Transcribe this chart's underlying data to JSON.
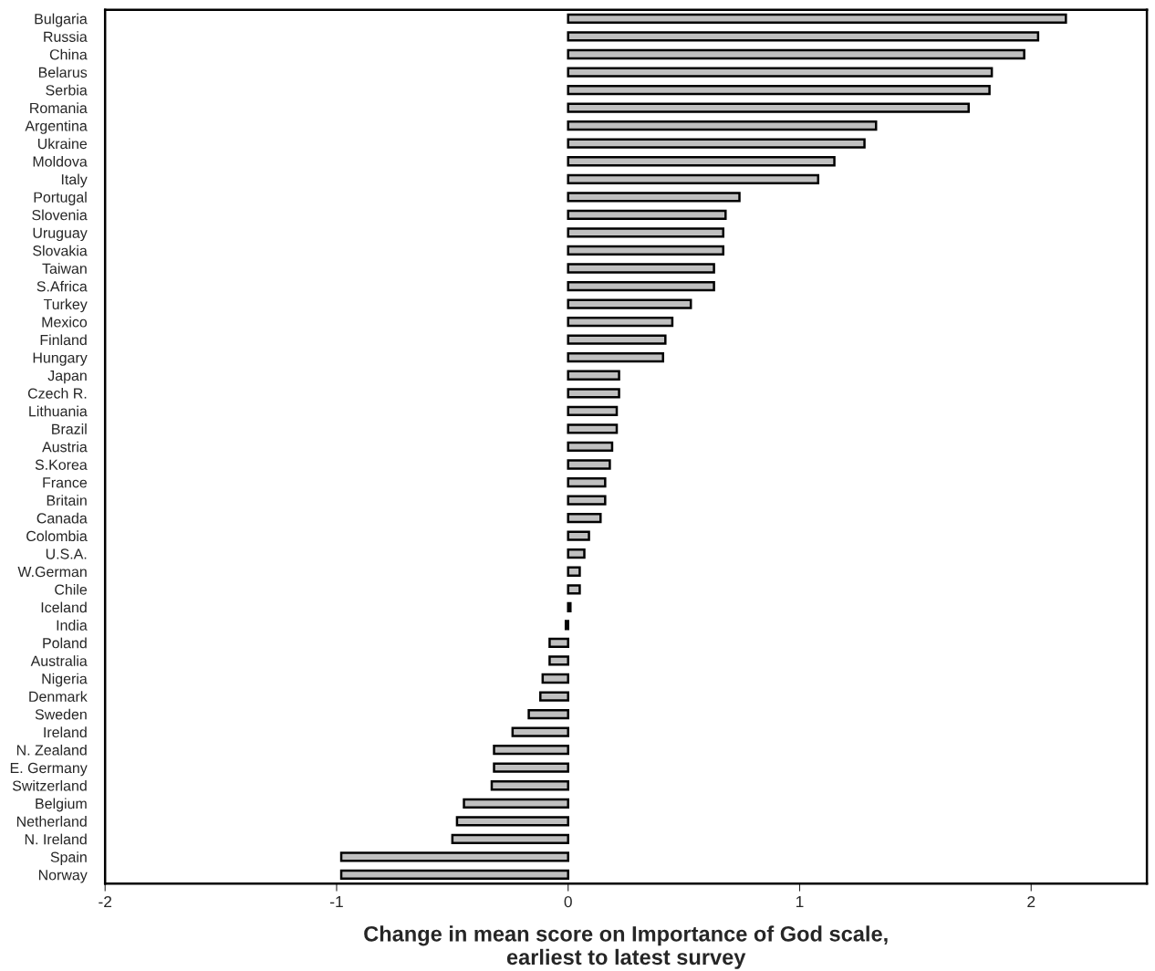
{
  "chart_data": {
    "type": "bar",
    "orientation": "horizontal",
    "xlabel": "Change in mean score on Importance of God scale,\nearliest to latest survey",
    "categories": [
      "Bulgaria",
      "Russia",
      "China",
      "Belarus",
      "Serbia",
      "Romania",
      "Argentina",
      "Ukraine",
      "Moldova",
      "Italy",
      "Portugal",
      "Slovenia",
      "Uruguay",
      "Slovakia",
      "Taiwan",
      "S.Africa",
      "Turkey",
      "Mexico",
      "Finland",
      "Hungary",
      "Japan",
      "Czech R.",
      "Lithuania",
      "Brazil",
      "Austria",
      "S.Korea",
      "France",
      "Britain",
      "Canada",
      "Colombia",
      "U.S.A.",
      "W.German",
      "Chile",
      "Iceland",
      "India",
      "Poland",
      "Australia",
      "Nigeria",
      "Denmark",
      "Sweden",
      "Ireland",
      "N. Zealand",
      "E. Germany",
      "Switzerland",
      "Belgium",
      "Netherland",
      "N. Ireland",
      "Spain",
      "Norway"
    ],
    "values": [
      2.15,
      2.03,
      1.97,
      1.83,
      1.82,
      1.73,
      1.33,
      1.28,
      1.15,
      1.08,
      0.74,
      0.68,
      0.67,
      0.67,
      0.63,
      0.63,
      0.53,
      0.45,
      0.42,
      0.41,
      0.22,
      0.22,
      0.21,
      0.21,
      0.19,
      0.18,
      0.16,
      0.16,
      0.14,
      0.09,
      0.07,
      0.05,
      0.05,
      0.01,
      -0.01,
      -0.08,
      -0.08,
      -0.11,
      -0.12,
      -0.17,
      -0.24,
      -0.32,
      -0.32,
      -0.33,
      -0.45,
      -0.48,
      -0.5,
      -0.98,
      -0.98
    ],
    "color": "#c0c0c0",
    "xlim": [
      -2,
      2.5
    ],
    "xticks": [
      -2,
      -1,
      0,
      1,
      2
    ],
    "grid": false,
    "legend": false
  }
}
